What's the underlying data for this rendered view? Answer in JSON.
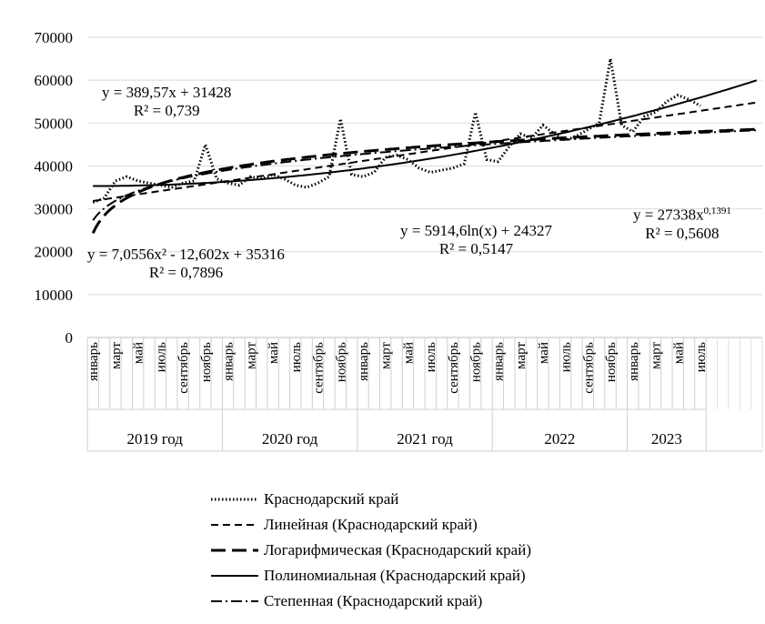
{
  "chart_data": {
    "type": "line",
    "ylim": [
      0,
      70000
    ],
    "yticks": [
      "70000",
      "60000",
      "50000",
      "40000",
      "30000",
      "20000",
      "10000",
      "0"
    ],
    "months": [
      "январь",
      "",
      "март",
      "",
      "май",
      "",
      "июль",
      "",
      "сентябрь",
      "",
      "ноябрь",
      ""
    ],
    "years": [
      "2019 год",
      "2020 год",
      "2021 год",
      "2022",
      "2023"
    ],
    "n_points": 55,
    "grid": "horizontal",
    "series": [
      {
        "name": "Краснодарский край",
        "values": [
          31500,
          32500,
          36500,
          37500,
          36500,
          36000,
          35500,
          35000,
          36000,
          36500,
          45000,
          37000,
          36000,
          35500,
          37500,
          37000,
          38000,
          37000,
          35500,
          35000,
          36000,
          37500,
          51000,
          38000,
          37500,
          38500,
          42000,
          42500,
          41500,
          39500,
          38500,
          39000,
          39500,
          40500,
          52500,
          41500,
          41000,
          44500,
          47500,
          46500,
          49500,
          47500,
          46000,
          47000,
          48500,
          50000,
          65000,
          49500,
          48000,
          51500,
          52500,
          55000,
          56500,
          55500,
          54000
        ]
      },
      {
        "name": "Линейная (Краснодарский край)",
        "fit": "linear",
        "coef": [
          389.57,
          31428
        ]
      },
      {
        "name": "Логарифмическая (Краснодарский край)",
        "fit": "log",
        "coef": [
          5914.6,
          24327
        ]
      },
      {
        "name": "Полиномиальная (Краснодарский край)",
        "fit": "poly2",
        "coef": [
          7.0556,
          -12.602,
          35316
        ]
      },
      {
        "name": "Степенная (Краснодарский край)",
        "fit": "power",
        "coef": [
          27338,
          0.1391
        ]
      }
    ],
    "annotations": [
      {
        "line1": "y = 389,57x + 31428",
        "line2": "R² = 0,739"
      },
      {
        "line1": "y = 7,0556x² - 12,602x + 35316",
        "line2": "R² = 0,7896"
      },
      {
        "line1": "y = 5914,6ln(x) + 24327",
        "line2": "R² = 0,5147"
      },
      {
        "line1": "y = 27338x",
        "sup": "0,1391",
        "line2": "R² = 0,5608"
      }
    ]
  },
  "legend": [
    {
      "label": "Краснодарский край",
      "style": "dotted"
    },
    {
      "label": "Линейная (Краснодарский край)",
      "style": "dashed"
    },
    {
      "label": "Логарифмическая (Краснодарский край)",
      "style": "longdash"
    },
    {
      "label": "Полиномиальная (Краснодарский край)",
      "style": "solid"
    },
    {
      "label": "Степенная (Краснодарский край)",
      "style": "dashdot"
    }
  ]
}
